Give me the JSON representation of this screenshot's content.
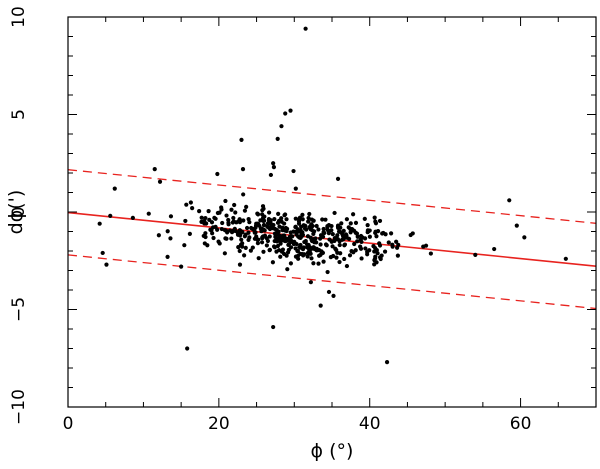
{
  "chart_data": {
    "type": "scatter",
    "title": "",
    "xlabel": "ϕ (°)",
    "ylabel": "dϕ(')",
    "xlim": [
      0,
      70
    ],
    "ylim": [
      -10,
      10
    ],
    "xticks": [
      0,
      20,
      40,
      60
    ],
    "yticks": [
      -10,
      -5,
      0,
      5,
      10
    ],
    "grid": false,
    "colors": {
      "points": "#000000",
      "fit": "#e8231f"
    },
    "fit_line": {
      "x": [
        0,
        70
      ],
      "y": [
        -0.03,
        -2.78
      ],
      "style": "solid"
    },
    "bound_lines": [
      {
        "x": [
          0,
          70
        ],
        "y": [
          2.17,
          -0.58
        ],
        "style": "dashed"
      },
      {
        "x": [
          0,
          70
        ],
        "y": [
          -2.2,
          -4.95
        ],
        "style": "dashed"
      }
    ],
    "points": [
      [
        31.5,
        9.4
      ],
      [
        29.5,
        5.2
      ],
      [
        28.8,
        5.05
      ],
      [
        28.3,
        4.4
      ],
      [
        27.8,
        3.75
      ],
      [
        23.0,
        3.7
      ],
      [
        27.2,
        2.5
      ],
      [
        27.3,
        2.3
      ],
      [
        23.2,
        2.2
      ],
      [
        11.5,
        2.2
      ],
      [
        29.9,
        2.1
      ],
      [
        26.9,
        1.9
      ],
      [
        19.8,
        1.95
      ],
      [
        12.2,
        1.55
      ],
      [
        35.8,
        1.7
      ],
      [
        6.2,
        1.2
      ],
      [
        30.2,
        1.2
      ],
      [
        58.5,
        0.6
      ],
      [
        59.5,
        -0.7
      ],
      [
        60.5,
        -1.3
      ],
      [
        66.0,
        -2.4
      ],
      [
        56.5,
        -1.9
      ],
      [
        54.0,
        -2.2
      ],
      [
        4.2,
        -0.6
      ],
      [
        4.6,
        -2.1
      ],
      [
        5.1,
        -2.7
      ],
      [
        5.6,
        -0.2
      ],
      [
        8.6,
        -0.3
      ],
      [
        15.8,
        -7.0
      ],
      [
        27.2,
        -5.9
      ],
      [
        42.3,
        -7.7
      ],
      [
        33.5,
        -4.8
      ],
      [
        35.2,
        -4.3
      ],
      [
        34.6,
        -4.1
      ],
      [
        32.2,
        -3.6
      ],
      [
        15.0,
        -2.8
      ],
      [
        13.2,
        -2.3
      ],
      [
        22.8,
        -2.7
      ]
    ],
    "cloud": {
      "seed": 7,
      "count": 480,
      "x_range": [
        8,
        52
      ],
      "x_center": 31,
      "x_spread": 10,
      "slope": -0.0393,
      "intercept": -0.03,
      "scatter": 0.85
    }
  }
}
